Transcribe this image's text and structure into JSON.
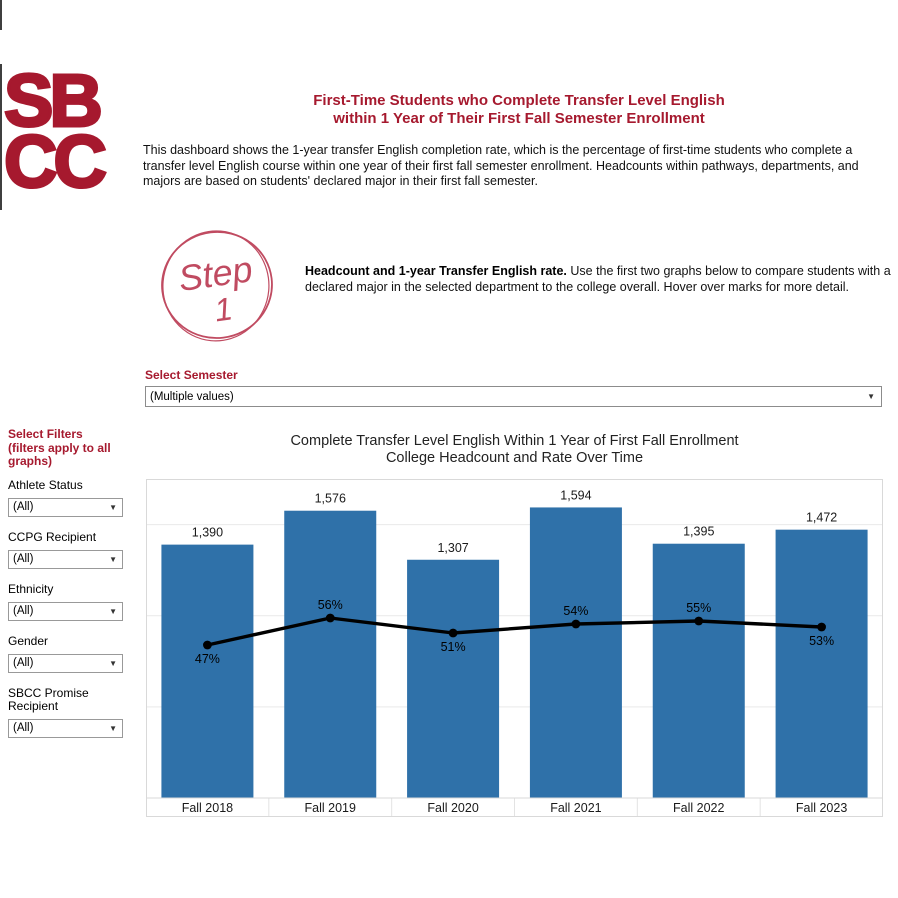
{
  "page": {
    "logo_line1": "SB",
    "logo_line2": "CC",
    "title_line1": "First-Time Students who Complete Transfer Level English",
    "title_line2": "within 1 Year of Their First Fall Semester Enrollment",
    "description": "This dashboard shows the 1-year transfer English completion rate, which is the percentage of first-time students who complete a transfer level English course within one year of their first fall semester enrollment. Headcounts within pathways, departments, and majors are based on students' declared major in their first fall semester."
  },
  "step": {
    "badge_line1": "Step",
    "badge_line2": "1",
    "bold_text": "Headcount and 1-year Transfer English rate.",
    "body_text": " Use the first two graphs below to compare students with a declared major in the selected department to the college overall. Hover over marks for more detail."
  },
  "semester_filter": {
    "label": "Select Semester",
    "value": "(Multiple values)"
  },
  "ui": {
    "dropdown_arrow": "▼"
  },
  "sidebar": {
    "heading": "Select Filters (filters apply to all graphs)",
    "filters": [
      {
        "label": "Athlete Status",
        "value": "(All)"
      },
      {
        "label": "CCPG Recipient",
        "value": "(All)"
      },
      {
        "label": "Ethnicity",
        "value": "(All)"
      },
      {
        "label": "Gender",
        "value": "(All)"
      },
      {
        "label": "SBCC Promise Recipient",
        "value": "(All)"
      }
    ]
  },
  "chart_data": {
    "type": "bar",
    "title_line1": "Complete Transfer Level English Within 1 Year of First Fall Enrollment",
    "title_line2": "College Headcount and Rate Over Time",
    "categories": [
      "Fall 2018",
      "Fall 2019",
      "Fall 2020",
      "Fall 2021",
      "Fall 2022",
      "Fall 2023"
    ],
    "series": [
      {
        "name": "College Headcount",
        "type": "bar",
        "values": [
          1390,
          1576,
          1307,
          1594,
          1395,
          1472
        ],
        "labels": [
          "1,390",
          "1,576",
          "1,307",
          "1,594",
          "1,395",
          "1,472"
        ],
        "color": "#2F71A9"
      },
      {
        "name": "1-year Transfer English rate",
        "type": "line",
        "values": [
          47,
          56,
          51,
          54,
          55,
          53
        ],
        "labels": [
          "47%",
          "56%",
          "51%",
          "54%",
          "55%",
          "53%"
        ],
        "label_side": [
          "below",
          "above",
          "below",
          "above",
          "above",
          "below"
        ],
        "color": "#000000"
      }
    ],
    "bar_axis_max": 1750,
    "gridlines": [
      500,
      1000,
      1500
    ],
    "grid": "on",
    "legend": "none",
    "xlabel": "",
    "ylabel": ""
  },
  "colors": {
    "brand_red": "#A6192E",
    "step_red": "#C04B61",
    "bar_blue": "#2F71A9",
    "grid_gray": "#e9e9e9",
    "border_gray": "#d9d9d9"
  }
}
